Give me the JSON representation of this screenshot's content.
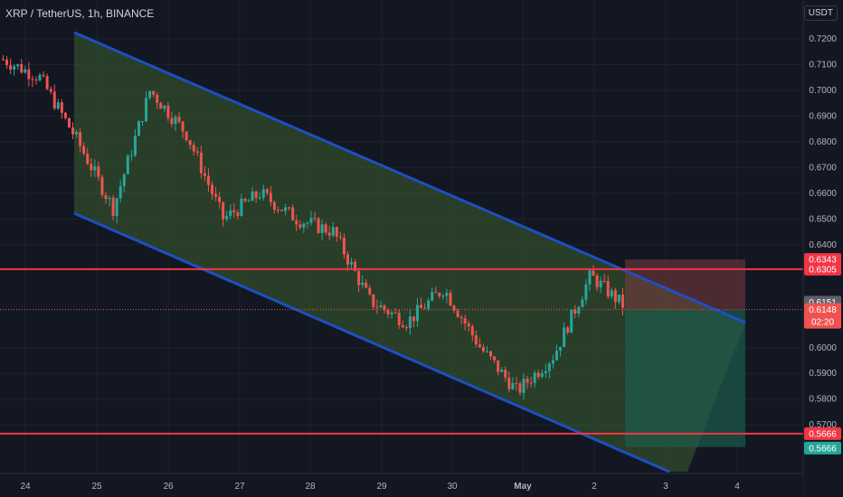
{
  "header": {
    "symbol_title": "XRP / TetherUS, 1h, BINANCE",
    "currency": "USDT"
  },
  "colors": {
    "background": "#131722",
    "up": "#26a69a",
    "down": "#ef5350",
    "channel_line": "#1e4fc2",
    "channel_fill": "#3a5e2e",
    "horizontal_line": "#f23645",
    "axis_text": "#b2b5be",
    "stop_zone": "#7a3a3f",
    "target_zone": "#1d5c4d"
  },
  "price_axis": {
    "labels": [
      "0.7200",
      "0.7100",
      "0.7000",
      "0.6900",
      "0.6800",
      "0.6700",
      "0.6600",
      "0.6500",
      "0.6400",
      "0.6000",
      "0.5900",
      "0.5800",
      "0.5700"
    ]
  },
  "time_axis": {
    "labels": [
      "24",
      "25",
      "26",
      "27",
      "28",
      "29",
      "30",
      "May",
      "2",
      "3",
      "4"
    ]
  },
  "price_tags": {
    "stop_top": "0.6343",
    "resistance": "0.6305",
    "last_close": "0.6151",
    "current_price": "0.6148",
    "countdown": "02:20",
    "support": "0.5666",
    "target": "0.5666"
  },
  "chart_data": {
    "type": "candlestick",
    "symbol": "XRP / TetherUS",
    "interval": "1h",
    "exchange": "BINANCE",
    "y_range": [
      0.5614,
      0.7273
    ],
    "y_ticks": [
      0.72,
      0.71,
      0.7,
      0.69,
      0.68,
      0.67,
      0.66,
      0.65,
      0.64,
      0.6,
      0.59,
      0.58,
      0.57
    ],
    "x_day_labels": [
      "24",
      "25",
      "26",
      "27",
      "28",
      "29",
      "30",
      "May",
      "2",
      "3",
      "4"
    ],
    "current_price": 0.6148,
    "horizontal_levels": [
      0.6305,
      0.5666
    ],
    "price_path_approx": [
      {
        "day": "24",
        "price": 0.712
      },
      {
        "day": "25",
        "price": 0.705
      },
      {
        "day": "25",
        "price": 0.681
      },
      {
        "day": "25",
        "price": 0.654
      },
      {
        "day": "26",
        "price": 0.7
      },
      {
        "day": "26",
        "price": 0.683
      },
      {
        "day": "27",
        "price": 0.65
      },
      {
        "day": "27",
        "price": 0.66
      },
      {
        "day": "28",
        "price": 0.65
      },
      {
        "day": "29",
        "price": 0.645
      },
      {
        "day": "29",
        "price": 0.618
      },
      {
        "day": "30",
        "price": 0.61
      },
      {
        "day": "30",
        "price": 0.623
      },
      {
        "day": "May",
        "price": 0.6
      },
      {
        "day": "May",
        "price": 0.583
      },
      {
        "day": "2",
        "price": 0.597
      },
      {
        "day": "2",
        "price": 0.628
      },
      {
        "day": "2",
        "price": 0.615
      }
    ],
    "channel": {
      "upper": [
        {
          "day": "24.7",
          "price": 0.7227
        },
        {
          "day": "3.9",
          "price": 0.6081
        }
      ],
      "lower": [
        {
          "day": "24.7",
          "price": 0.6519
        },
        {
          "day": "3",
          "price": 0.5572
        }
      ]
    },
    "position": {
      "entry": 0.6148,
      "stop": 0.6343,
      "target": 0.5666
    }
  }
}
